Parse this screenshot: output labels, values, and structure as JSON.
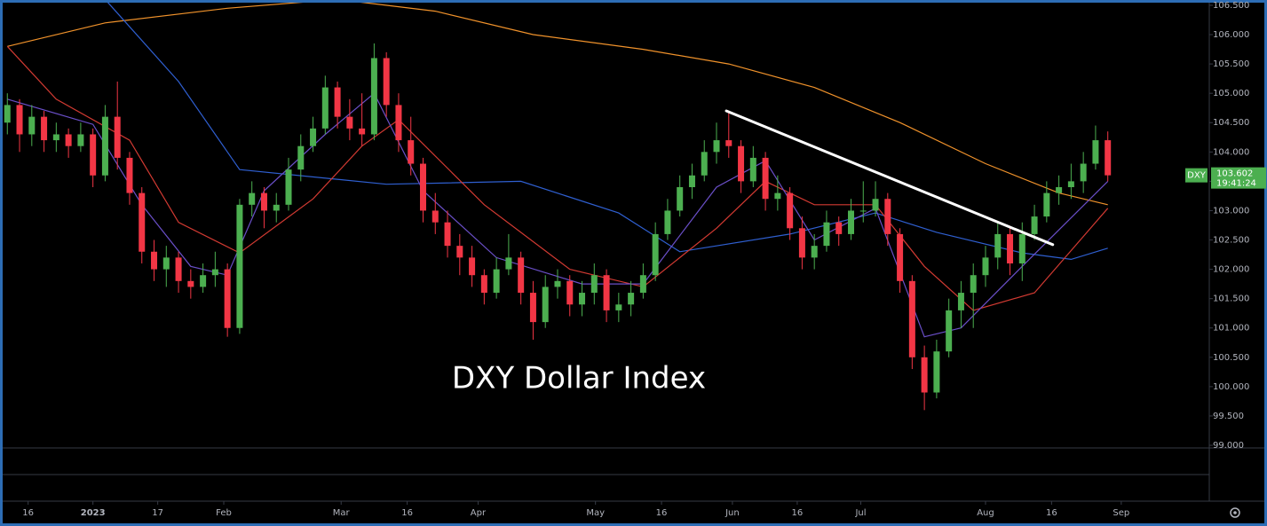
{
  "chart_data": {
    "type": "candlestick",
    "title": "DXY Dollar Index",
    "symbol": "DXY",
    "last_price": {
      "value": 103.602,
      "label": "103.602"
    },
    "countdown": "19:41:24",
    "up_color": "#4caf50",
    "down_color": "#f23645",
    "xlim": [
      -0.6,
      98.3
    ],
    "ylim": [
      98.955,
      106.59
    ],
    "xticks": [
      {
        "value": 1.7,
        "label": "16"
      },
      {
        "value": 7.0,
        "label": "2023"
      },
      {
        "value": 12.3,
        "label": "17"
      },
      {
        "value": 17.7,
        "label": "Feb"
      },
      {
        "value": 27.3,
        "label": "Mar"
      },
      {
        "value": 32.7,
        "label": "16"
      },
      {
        "value": 38.5,
        "label": "Apr"
      },
      {
        "value": 48.1,
        "label": "May"
      },
      {
        "value": 53.5,
        "label": "16"
      },
      {
        "value": 59.3,
        "label": "Jun"
      },
      {
        "value": 64.6,
        "label": "16"
      },
      {
        "value": 69.8,
        "label": "Jul"
      },
      {
        "value": 80.0,
        "label": "Aug"
      },
      {
        "value": 85.4,
        "label": "16"
      },
      {
        "value": 91.1,
        "label": "Sep"
      }
    ],
    "yticks": [
      {
        "value": 99.0,
        "label": "99.000"
      },
      {
        "value": 99.5,
        "label": "99.500"
      },
      {
        "value": 100.0,
        "label": "100.000"
      },
      {
        "value": 100.5,
        "label": "100.500"
      },
      {
        "value": 101.0,
        "label": "101.000"
      },
      {
        "value": 101.5,
        "label": "101.500"
      },
      {
        "value": 102.0,
        "label": "102.000"
      },
      {
        "value": 102.5,
        "label": "102.500"
      },
      {
        "value": 103.0,
        "label": "103.000"
      },
      {
        "value": 103.5,
        "label": "103.500"
      },
      {
        "value": 104.0,
        "label": "104.000"
      },
      {
        "value": 104.5,
        "label": "104.500"
      },
      {
        "value": 105.0,
        "label": "105.000"
      },
      {
        "value": 105.5,
        "label": "105.500"
      },
      {
        "value": 106.0,
        "label": "106.000"
      },
      {
        "value": 106.5,
        "label": "106.500"
      }
    ],
    "candles": [
      [
        104.5,
        105.0,
        104.3,
        104.8
      ],
      [
        104.8,
        104.9,
        104.0,
        104.3
      ],
      [
        104.3,
        104.8,
        104.1,
        104.6
      ],
      [
        104.6,
        104.7,
        104.0,
        104.2
      ],
      [
        104.2,
        104.5,
        104.0,
        104.3
      ],
      [
        104.3,
        104.4,
        103.9,
        104.1
      ],
      [
        104.1,
        104.5,
        104.0,
        104.3
      ],
      [
        104.3,
        104.4,
        103.4,
        103.6
      ],
      [
        103.6,
        104.8,
        103.5,
        104.6
      ],
      [
        104.6,
        105.2,
        103.7,
        103.9
      ],
      [
        103.9,
        104.0,
        103.1,
        103.3
      ],
      [
        103.3,
        103.4,
        102.1,
        102.3
      ],
      [
        102.3,
        102.5,
        101.8,
        102.0
      ],
      [
        102.0,
        102.4,
        101.7,
        102.2
      ],
      [
        102.2,
        102.3,
        101.6,
        101.8
      ],
      [
        101.8,
        102.0,
        101.5,
        101.7
      ],
      [
        101.7,
        102.1,
        101.6,
        101.9
      ],
      [
        101.9,
        102.3,
        101.7,
        102.0
      ],
      [
        102.0,
        102.1,
        100.85,
        101.0
      ],
      [
        101.0,
        103.2,
        100.9,
        103.1
      ],
      [
        103.1,
        103.5,
        102.9,
        103.3
      ],
      [
        103.3,
        103.4,
        102.7,
        103.0
      ],
      [
        103.0,
        103.3,
        102.8,
        103.1
      ],
      [
        103.1,
        103.9,
        103.0,
        103.7
      ],
      [
        103.7,
        104.3,
        103.5,
        104.1
      ],
      [
        104.1,
        104.6,
        104.0,
        104.4
      ],
      [
        104.4,
        105.3,
        104.3,
        105.1
      ],
      [
        105.1,
        105.2,
        104.4,
        104.6
      ],
      [
        104.6,
        104.9,
        104.2,
        104.4
      ],
      [
        104.4,
        105.0,
        104.1,
        104.3
      ],
      [
        104.3,
        105.85,
        104.2,
        105.6
      ],
      [
        105.6,
        105.7,
        104.6,
        104.8
      ],
      [
        104.8,
        105.0,
        104.0,
        104.2
      ],
      [
        104.2,
        104.6,
        103.6,
        103.8
      ],
      [
        103.8,
        103.9,
        102.8,
        103.0
      ],
      [
        103.0,
        103.3,
        102.6,
        102.8
      ],
      [
        102.8,
        103.0,
        102.2,
        102.4
      ],
      [
        102.4,
        102.6,
        101.9,
        102.2
      ],
      [
        102.2,
        102.4,
        101.7,
        101.9
      ],
      [
        101.9,
        102.0,
        101.4,
        101.6
      ],
      [
        101.6,
        102.2,
        101.5,
        102.0
      ],
      [
        102.0,
        102.6,
        101.9,
        102.2
      ],
      [
        102.2,
        102.3,
        101.4,
        101.6
      ],
      [
        101.6,
        101.8,
        100.8,
        101.1
      ],
      [
        101.1,
        101.9,
        101.0,
        101.7
      ],
      [
        101.7,
        102.0,
        101.5,
        101.8
      ],
      [
        101.8,
        101.9,
        101.2,
        101.4
      ],
      [
        101.4,
        101.8,
        101.2,
        101.6
      ],
      [
        101.6,
        102.1,
        101.4,
        101.9
      ],
      [
        101.9,
        102.0,
        101.1,
        101.3
      ],
      [
        101.3,
        101.6,
        101.1,
        101.4
      ],
      [
        101.4,
        101.8,
        101.2,
        101.6
      ],
      [
        101.6,
        102.1,
        101.5,
        101.9
      ],
      [
        101.9,
        102.8,
        101.8,
        102.6
      ],
      [
        102.6,
        103.2,
        102.5,
        103.0
      ],
      [
        103.0,
        103.6,
        102.9,
        103.4
      ],
      [
        103.4,
        103.8,
        103.2,
        103.6
      ],
      [
        103.6,
        104.2,
        103.5,
        104.0
      ],
      [
        104.0,
        104.5,
        103.8,
        104.2
      ],
      [
        104.2,
        104.7,
        103.9,
        104.1
      ],
      [
        104.1,
        104.2,
        103.3,
        103.5
      ],
      [
        103.5,
        104.1,
        103.4,
        103.9
      ],
      [
        103.9,
        104.0,
        103.0,
        103.2
      ],
      [
        103.2,
        103.6,
        103.0,
        103.3
      ],
      [
        103.3,
        103.4,
        102.5,
        102.7
      ],
      [
        102.7,
        102.9,
        102.0,
        102.2
      ],
      [
        102.2,
        102.6,
        102.0,
        102.4
      ],
      [
        102.4,
        103.0,
        102.3,
        102.8
      ],
      [
        102.8,
        102.9,
        102.4,
        102.6
      ],
      [
        102.6,
        103.2,
        102.5,
        103.0
      ],
      [
        103.0,
        103.5,
        102.8,
        103.0
      ],
      [
        103.0,
        103.5,
        102.9,
        103.2
      ],
      [
        103.2,
        103.3,
        102.4,
        102.6
      ],
      [
        102.6,
        102.7,
        101.6,
        101.8
      ],
      [
        101.8,
        101.9,
        100.3,
        100.5
      ],
      [
        100.5,
        100.7,
        99.6,
        99.9
      ],
      [
        99.9,
        100.8,
        99.8,
        100.6
      ],
      [
        100.6,
        101.5,
        100.5,
        101.3
      ],
      [
        101.3,
        101.8,
        101.0,
        101.6
      ],
      [
        101.6,
        102.1,
        101.0,
        101.9
      ],
      [
        101.9,
        102.4,
        101.7,
        102.2
      ],
      [
        102.2,
        102.8,
        102.0,
        102.6
      ],
      [
        102.6,
        102.7,
        101.9,
        102.1
      ],
      [
        102.1,
        102.8,
        101.8,
        102.6
      ],
      [
        102.6,
        103.1,
        102.5,
        102.9
      ],
      [
        102.9,
        103.5,
        102.8,
        103.3
      ],
      [
        103.3,
        103.6,
        103.1,
        103.4
      ],
      [
        103.4,
        103.8,
        103.2,
        103.5
      ],
      [
        103.5,
        104.0,
        103.3,
        103.8
      ],
      [
        103.8,
        104.45,
        103.7,
        104.2
      ],
      [
        104.2,
        104.35,
        103.5,
        103.602
      ]
    ],
    "series": [
      {
        "color": "#f0922b",
        "x": [
          0,
          8,
          18,
          27,
          35,
          43,
          52,
          59,
          66,
          73,
          80,
          86,
          90
        ],
        "values": [
          105.8,
          106.2,
          106.45,
          106.6,
          106.4,
          106.0,
          105.75,
          105.5,
          105.1,
          104.5,
          103.8,
          103.3,
          103.1
        ]
      },
      {
        "color": "#2f5fd0",
        "x": [
          8,
          14,
          19,
          31,
          42,
          50,
          55,
          64,
          71,
          76,
          83,
          87,
          90
        ],
        "values": [
          106.6,
          105.2,
          103.7,
          103.45,
          103.5,
          102.96,
          102.3,
          102.6,
          102.96,
          102.63,
          102.28,
          102.17,
          102.36
        ]
      },
      {
        "color": "#d23a32",
        "x": [
          0,
          4,
          10,
          14,
          19,
          25,
          29,
          32,
          39,
          46,
          52,
          58,
          62,
          66,
          71,
          75,
          79,
          84,
          90
        ],
        "values": [
          105.8,
          104.9,
          104.2,
          102.8,
          102.28,
          103.2,
          104.1,
          104.55,
          103.1,
          102.0,
          101.7,
          102.7,
          103.5,
          103.1,
          103.1,
          102.05,
          101.3,
          101.6,
          103.04
        ]
      },
      {
        "color": "#6a4fc8",
        "x": [
          0,
          7,
          11,
          15,
          18,
          21,
          26,
          30,
          34,
          40,
          47,
          52,
          58,
          62,
          66,
          71,
          75,
          78,
          83,
          90
        ],
        "values": [
          104.9,
          104.47,
          103.1,
          102.05,
          101.9,
          103.34,
          104.3,
          105.0,
          103.34,
          102.2,
          101.75,
          101.75,
          103.4,
          103.85,
          102.5,
          103.04,
          100.85,
          101.0,
          102.05,
          103.5
        ]
      }
    ],
    "trendline": {
      "x": [
        58.8,
        85.5
      ],
      "y": [
        104.7,
        102.42
      ],
      "color": "#ffffff"
    }
  }
}
